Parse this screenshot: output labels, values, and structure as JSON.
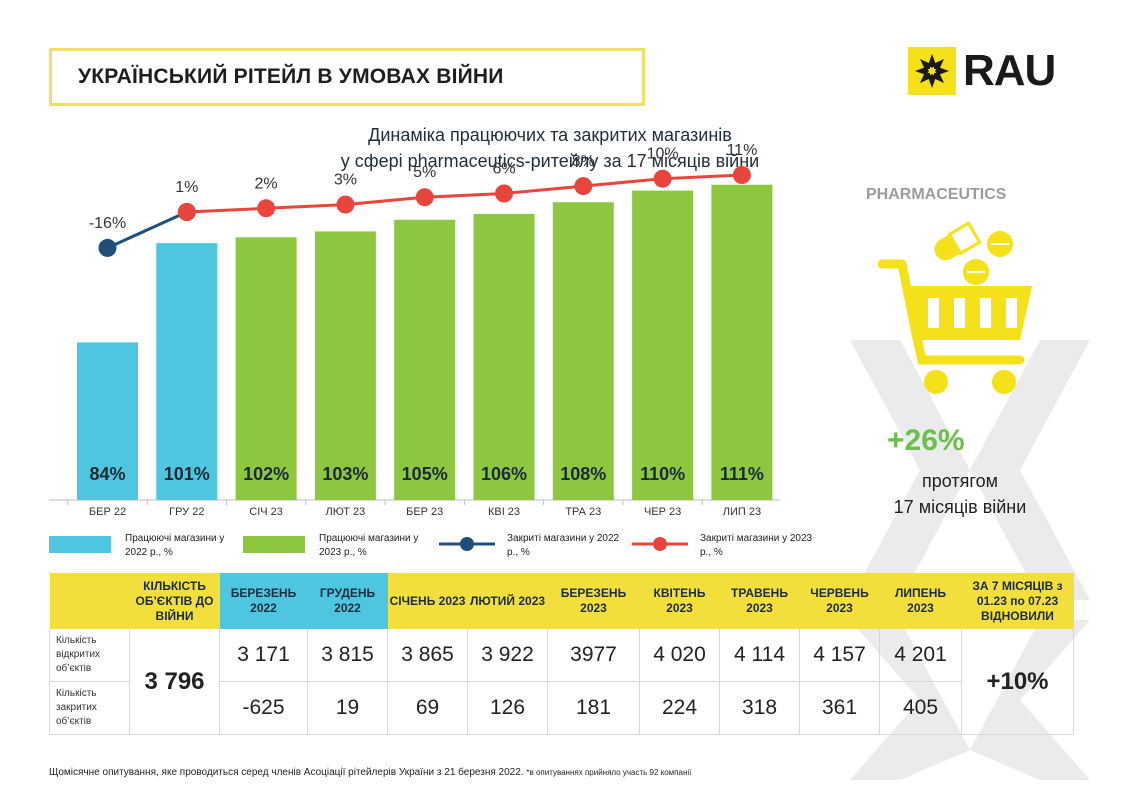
{
  "title": "УКРАЇНСЬКИЙ РІТЕЙЛ В УМОВАХ ВІЙНИ",
  "logo_text": "RAU",
  "subtitle_lines": [
    "Динаміка працюючих та закритих магазинів",
    "у сфері pharmaceutics-ритейлу за 17 місяців війни"
  ],
  "colors": {
    "blue_bar": "#4fc6e0",
    "green_bar": "#8dc63f",
    "navy_line": "#1f4e79",
    "red_line": "#e8453c",
    "yellow": "#f3df3b"
  },
  "chart_data": {
    "type": "bar",
    "categories": [
      "БЕР 22",
      "ГРУ 22",
      "СІЧ 23",
      "ЛЮТ 23",
      "БЕР 23",
      "КВІ 23",
      "ТРА 23",
      "ЧЕР 23",
      "ЛИП 23"
    ],
    "series": [
      {
        "name": "Працюючі магазини у 2022 р., %",
        "kind": "bar",
        "color": "#4fc6e0",
        "values": [
          84,
          101,
          null,
          null,
          null,
          null,
          null,
          null,
          null
        ],
        "labels": [
          "84%",
          "101%",
          null,
          null,
          null,
          null,
          null,
          null,
          null
        ]
      },
      {
        "name": "Працюючі магазини у 2023 р., %",
        "kind": "bar",
        "color": "#8dc63f",
        "values": [
          null,
          null,
          102,
          103,
          105,
          106,
          108,
          110,
          111
        ],
        "labels": [
          null,
          null,
          "102%",
          "103%",
          "105%",
          "106%",
          "108%",
          "110%",
          "111%"
        ]
      },
      {
        "name": "Закриті магазини у 2022 р., %",
        "kind": "line",
        "color": "#1f4e79",
        "values": [
          -16,
          1,
          null,
          null,
          null,
          null,
          null,
          null,
          null
        ],
        "labels": [
          "-16%",
          "1%",
          null,
          null,
          null,
          null,
          null,
          null,
          null
        ]
      },
      {
        "name": "Закриті магазини у 2023 р., %",
        "kind": "line",
        "color": "#e8453c",
        "values": [
          null,
          1,
          2,
          3,
          5,
          6,
          8,
          10,
          11
        ],
        "labels": [
          null,
          null,
          "2%",
          "3%",
          "5%",
          "6%",
          "8%",
          "10%",
          "11%"
        ]
      }
    ],
    "legend_position": "bottom"
  },
  "legend": [
    {
      "label": "Працюючі магазини у 2022 р., %",
      "kind": "box",
      "color": "#4fc6e0"
    },
    {
      "label": "Працюючі магазини у 2023 р., %",
      "kind": "box",
      "color": "#8dc63f"
    },
    {
      "label": "Закриті магазини у 2022 р., %",
      "kind": "line",
      "color": "#1f4e79"
    },
    {
      "label": "Закриті магазини у 2023 р., %",
      "kind": "line",
      "color": "#e8453c"
    }
  ],
  "side_panel": {
    "label": "PHARMACEUTICS",
    "icon": "cart-with-pills-icon",
    "big_value": "+26%",
    "text_line1": "протягом",
    "text_line2": "17 місяців війни"
  },
  "table": {
    "headers": [
      {
        "text": "",
        "style": "yel"
      },
      {
        "text": "КІЛЬКІСТЬ ОБ’ЄКТІВ ДО ВІЙНИ",
        "style": "yel"
      },
      {
        "text": "БЕРЕЗЕНЬ 2022",
        "style": "blu"
      },
      {
        "text": "ГРУДЕНЬ 2022",
        "style": "blu"
      },
      {
        "text": "СІЧЕНЬ 2023",
        "style": "yel"
      },
      {
        "text": "ЛЮТИЙ 2023",
        "style": "yel"
      },
      {
        "text": "БЕРЕЗЕНЬ 2023",
        "style": "yel"
      },
      {
        "text": "КВІТЕНЬ 2023",
        "style": "yel"
      },
      {
        "text": "ТРАВЕНЬ 2023",
        "style": "yel"
      },
      {
        "text": "ЧЕРВЕНЬ 2023",
        "style": "yel"
      },
      {
        "text": "ЛИПЕНЬ 2023",
        "style": "yel"
      },
      {
        "text": "ЗА 7 МІСЯЦІВ з 01.23 по 07.23 ВІДНОВИЛИ",
        "style": "yel"
      }
    ],
    "prewar_count": "3 796",
    "recovered": "+10%",
    "rows": [
      {
        "label": "Кількість відкритих об’єктів",
        "values": [
          "3 171",
          "3 815",
          "3 865",
          "3 922",
          "3977",
          "4 020",
          "4 114",
          "4 157",
          "4 201"
        ]
      },
      {
        "label": "Кількість закритих об’єктів",
        "values": [
          "-625",
          "19",
          "69",
          "126",
          "181",
          "224",
          "318",
          "361",
          "405"
        ]
      }
    ]
  },
  "footnote": {
    "main": "Щомісячне опитування, яке проводиться серед членів Асоціації рітейлерів України з 21 березня 2022.",
    "small": "*в опитуваннях прийняло участь 92 компанії"
  }
}
